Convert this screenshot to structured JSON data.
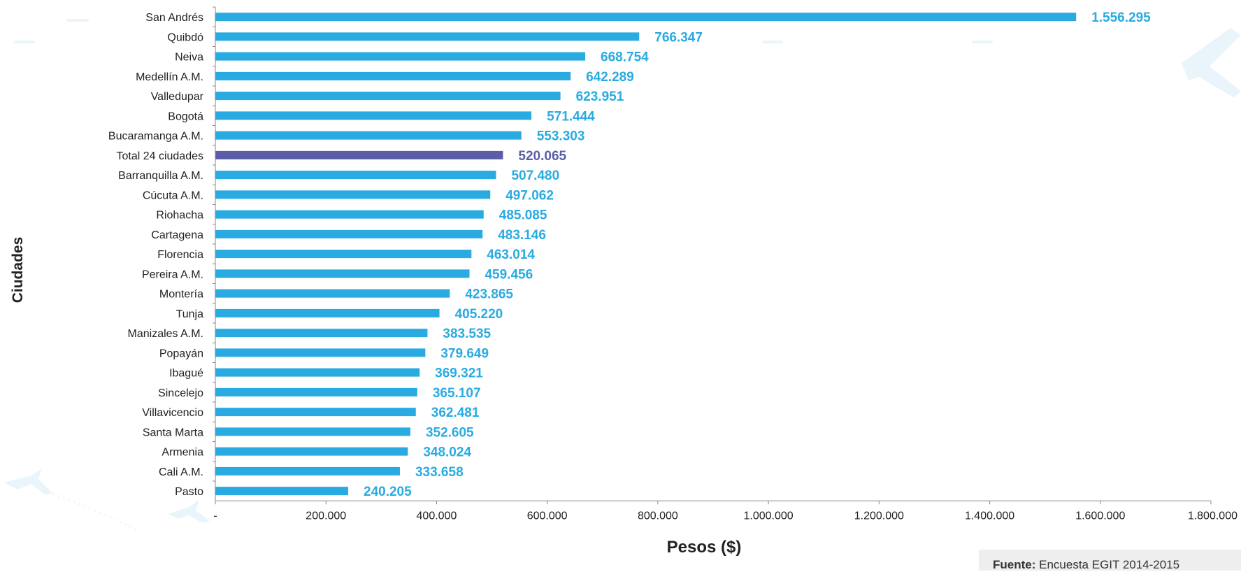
{
  "chart_data": {
    "type": "bar",
    "orientation": "horizontal",
    "title": "",
    "xlabel": "Pesos ($)",
    "ylabel": "Ciudades",
    "xlim": [
      0,
      1800000
    ],
    "x_ticks": [
      0,
      200000,
      400000,
      600000,
      800000,
      1000000,
      1200000,
      1400000,
      1600000,
      1800000
    ],
    "x_tick_labels": [
      "-",
      "200.000",
      "400.000",
      "600.000",
      "800.000",
      "1.000.000",
      "1.200.000",
      "1.400.000",
      "1.600.000",
      "1.800.000"
    ],
    "grid": false,
    "categories": [
      "San Andrés",
      "Quibdó",
      "Neiva",
      "Medellín A.M.",
      "Valledupar",
      "Bogotá",
      "Bucaramanga A.M.",
      "Total 24 ciudades",
      "Barranquilla A.M.",
      "Cúcuta A.M.",
      "Riohacha",
      "Cartagena",
      "Florencia",
      "Pereira A.M.",
      "Montería",
      "Tunja",
      "Manizales A.M.",
      "Popayán",
      "Ibagué",
      "Sincelejo",
      "Villavicencio",
      "Santa Marta",
      "Armenia",
      "Cali A.M.",
      "Pasto"
    ],
    "values": [
      1556295,
      766347,
      668754,
      642289,
      623951,
      571444,
      553303,
      520065,
      507480,
      497062,
      485085,
      483146,
      463014,
      459456,
      423865,
      405220,
      383535,
      379649,
      369321,
      365107,
      362481,
      352605,
      348024,
      333658,
      240205
    ],
    "value_labels": [
      "1.556.295",
      "766.347",
      "668.754",
      "642.289",
      "623.951",
      "571.444",
      "553.303",
      "520.065",
      "507.480",
      "497.062",
      "485.085",
      "483.146",
      "463.014",
      "459.456",
      "423.865",
      "405.220",
      "383.535",
      "379.649",
      "369.321",
      "365.107",
      "362.481",
      "352.605",
      "348.024",
      "333.658",
      "240.205"
    ],
    "highlight_category": "Total 24 ciudades",
    "colors": {
      "bar": "#29abe2",
      "highlight": "#5b5ea6",
      "axis": "#888888",
      "text": "#222222"
    }
  },
  "source": {
    "label": "Fuente:",
    "text": "Encuesta EGIT 2014-2015"
  }
}
